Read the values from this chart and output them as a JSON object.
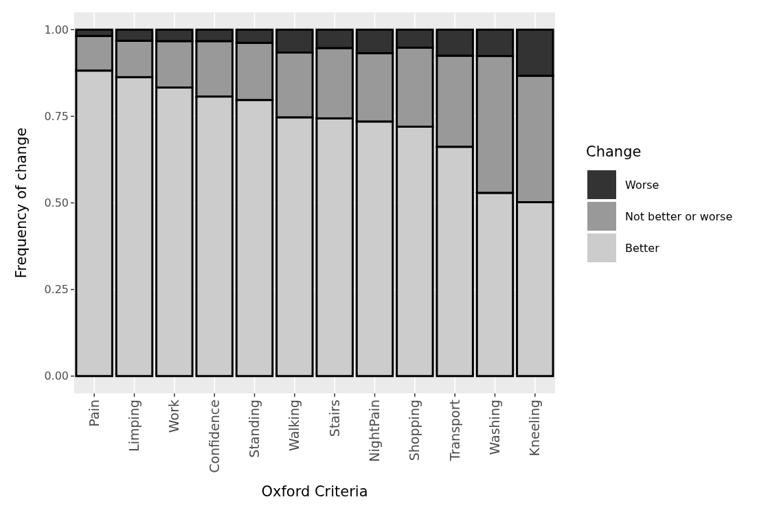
{
  "chart_data": {
    "type": "bar",
    "stacked": true,
    "xlabel": "Oxford Criteria",
    "ylabel": "Frequency of change",
    "legend_title": "Change",
    "legend": "right",
    "grid": true,
    "categories": [
      "Pain",
      "Limping",
      "Work",
      "Confidence",
      "Standing",
      "Walking",
      "Stairs",
      "NightPain",
      "Shopping",
      "Transport",
      "Washing",
      "Kneeling"
    ],
    "series": [
      {
        "name": "Better",
        "color": "#cccccc",
        "values": [
          0.882,
          0.863,
          0.833,
          0.807,
          0.797,
          0.747,
          0.744,
          0.735,
          0.72,
          0.662,
          0.529,
          0.502
        ]
      },
      {
        "name": "Not better or worse",
        "color": "#999999",
        "values": [
          0.1,
          0.105,
          0.134,
          0.16,
          0.165,
          0.187,
          0.203,
          0.197,
          0.228,
          0.263,
          0.395,
          0.365
        ]
      },
      {
        "name": "Worse",
        "color": "#333333",
        "values": [
          0.018,
          0.032,
          0.033,
          0.033,
          0.038,
          0.066,
          0.053,
          0.068,
          0.052,
          0.075,
          0.076,
          0.133
        ]
      }
    ],
    "ylim": [
      -0.05,
      1.05
    ],
    "yticks": [
      {
        "value": 0,
        "label": "0.00"
      },
      {
        "value": 0.25,
        "label": "0.25"
      },
      {
        "value": 0.5,
        "label": "0.50"
      },
      {
        "value": 0.75,
        "label": "0.75"
      },
      {
        "value": 1,
        "label": "1.00"
      }
    ]
  }
}
